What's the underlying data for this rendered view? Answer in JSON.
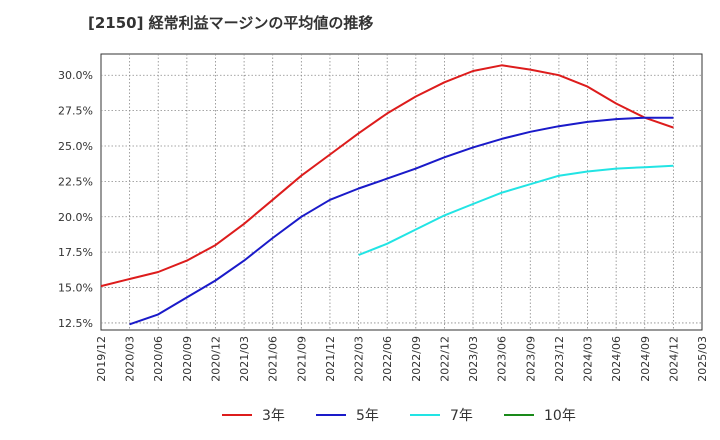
{
  "title": "[2150]  経常利益マージンの平均値の推移",
  "chart_data": {
    "type": "line",
    "title": "[2150]  経常利益マージンの平均値の推移",
    "xlabel": "",
    "ylabel": "",
    "x": [
      "2019/12",
      "2020/03",
      "2020/06",
      "2020/09",
      "2020/12",
      "2021/03",
      "2021/06",
      "2021/09",
      "2021/12",
      "2022/03",
      "2022/06",
      "2022/09",
      "2022/12",
      "2023/03",
      "2023/06",
      "2023/09",
      "2023/12",
      "2024/03",
      "2024/06",
      "2024/09",
      "2024/12",
      "2025/03"
    ],
    "y_ticks": [
      "12.5%",
      "15.0%",
      "17.5%",
      "20.0%",
      "22.5%",
      "25.0%",
      "27.5%",
      "30.0%"
    ],
    "ylim": [
      12.0,
      31.5
    ],
    "grid": true,
    "legend_position": "bottom",
    "series": [
      {
        "name": "3年",
        "color": "#dd1c1c",
        "values": [
          15.1,
          15.6,
          16.1,
          16.9,
          18.0,
          19.5,
          21.2,
          22.9,
          24.4,
          25.9,
          27.3,
          28.5,
          29.5,
          30.3,
          30.7,
          30.4,
          30.0,
          29.2,
          28.0,
          27.0,
          26.3,
          null
        ]
      },
      {
        "name": "5年",
        "color": "#1a1ac9",
        "values": [
          null,
          12.4,
          13.1,
          14.3,
          15.5,
          16.9,
          18.5,
          20.0,
          21.2,
          22.0,
          22.7,
          23.4,
          24.2,
          24.9,
          25.5,
          26.0,
          26.4,
          26.7,
          26.9,
          27.0,
          27.0,
          null
        ]
      },
      {
        "name": "7年",
        "color": "#22e4e4",
        "values": [
          null,
          null,
          null,
          null,
          null,
          null,
          null,
          null,
          null,
          17.3,
          18.1,
          19.1,
          20.1,
          20.9,
          21.7,
          22.3,
          22.9,
          23.2,
          23.4,
          23.5,
          23.6,
          null
        ]
      },
      {
        "name": "10年",
        "color": "#1a8a1a",
        "values": [
          null,
          null,
          null,
          null,
          null,
          null,
          null,
          null,
          null,
          null,
          null,
          null,
          null,
          null,
          null,
          null,
          null,
          null,
          null,
          null,
          null,
          null
        ]
      }
    ]
  }
}
